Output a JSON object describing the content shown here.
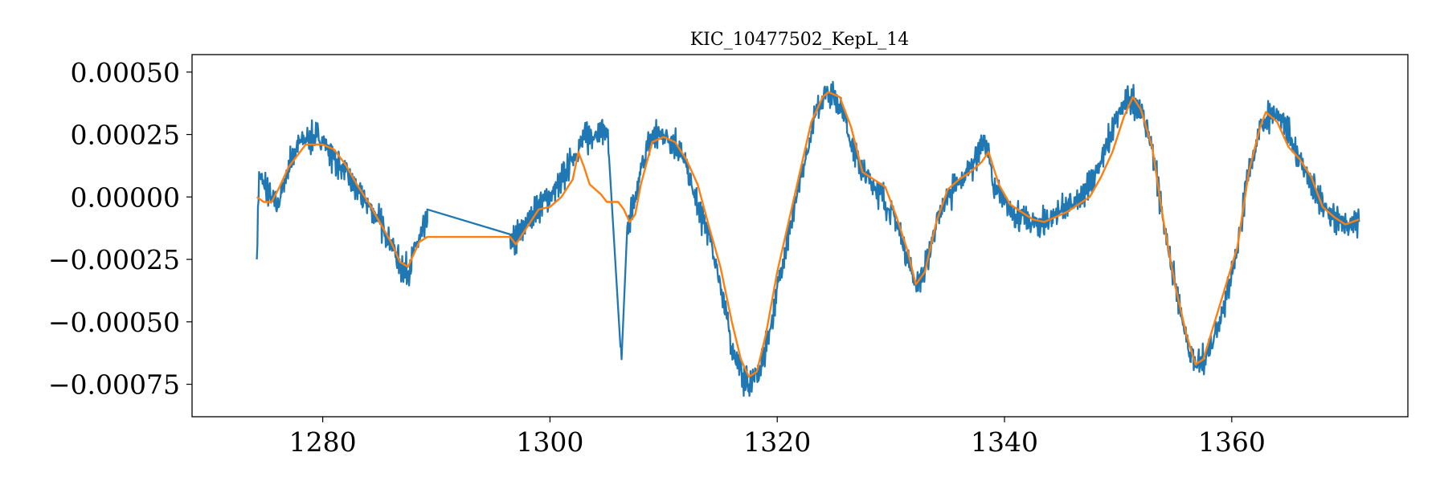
{
  "chart_data": {
    "type": "line",
    "title": "KIC_10477502_KepL_14",
    "xlabel": "",
    "ylabel": "",
    "xlim": [
      1268.5,
      1375.5
    ],
    "ylim": [
      -0.00088,
      0.00057
    ],
    "xticks": [
      1280,
      1300,
      1320,
      1340,
      1360
    ],
    "xtick_labels": [
      "1280",
      "1300",
      "1320",
      "1340",
      "1360"
    ],
    "yticks": [
      0.0005,
      0.00025,
      0.0,
      -0.00025,
      -0.0005,
      -0.00075
    ],
    "ytick_labels": [
      "0.00050",
      "0.00025",
      "0.00000",
      "−0.00025",
      "−0.00050",
      "−0.00075"
    ],
    "grid": false,
    "legend": "none",
    "series": [
      {
        "color": "#1f77b4",
        "noisy": true,
        "x": [
          1274.2,
          1274.4,
          1274.8,
          1275.5,
          1276.0,
          1276.5,
          1277.2,
          1278.0,
          1279.0,
          1280.0,
          1281.0,
          1282.0,
          1283.0,
          1284.0,
          1285.0,
          1286.0,
          1286.8,
          1287.5,
          1288.2,
          1289.2,
          1289.2,
          1296.5,
          1296.6,
          1297.2,
          1298.0,
          1299.0,
          1300.0,
          1301.0,
          1302.0,
          1303.0,
          1304.0,
          1305.0,
          1305.2,
          1306.2,
          1306.3,
          1306.8,
          1307.5,
          1308.2,
          1309.0,
          1310.0,
          1311.0,
          1312.0,
          1313.0,
          1314.0,
          1315.0,
          1316.0,
          1317.0,
          1317.5,
          1318.5,
          1319.5,
          1320.5,
          1321.5,
          1322.5,
          1323.5,
          1324.3,
          1325.0,
          1325.8,
          1326.5,
          1327.5,
          1328.5,
          1329.5,
          1330.5,
          1331.5,
          1332.2,
          1333.0,
          1334.0,
          1335.0,
          1336.0,
          1337.0,
          1337.3,
          1338.0,
          1338.5,
          1339.0,
          1340.0,
          1341.0,
          1342.0,
          1343.0,
          1344.0,
          1345.0,
          1346.0,
          1347.0,
          1348.0,
          1349.0,
          1350.0,
          1351.0,
          1352.0,
          1353.0,
          1354.0,
          1355.0,
          1356.0,
          1356.8,
          1357.5,
          1358.5,
          1359.5,
          1360.5,
          1361.5,
          1362.5,
          1363.5,
          1364.5,
          1365.5,
          1366.5,
          1367.5,
          1368.5,
          1369.5,
          1370.5,
          1371.2
        ],
        "y": [
          -0.00025,
          0.0001,
          5e-05,
          0.0,
          -4e-05,
          4e-05,
          0.00015,
          0.00022,
          0.00024,
          0.00023,
          0.00015,
          0.0001,
          2e-05,
          -3e-05,
          -0.0001,
          -0.00018,
          -0.00027,
          -0.0003,
          -0.0002,
          -0.0001,
          -5e-05,
          -0.00015,
          -0.0002,
          -0.00015,
          -0.0001,
          -3e-05,
          0.0,
          6e-05,
          0.00016,
          0.00023,
          0.00026,
          0.00027,
          0.00016,
          -0.0006,
          -0.00065,
          -0.00012,
          -2e-05,
          0.00015,
          0.00025,
          0.00025,
          0.00022,
          0.00012,
          -5e-05,
          -0.00015,
          -0.00035,
          -0.0006,
          -0.00072,
          -0.00075,
          -0.0007,
          -0.0005,
          -0.00025,
          -5e-05,
          0.00015,
          0.00035,
          0.00043,
          0.0004,
          0.00035,
          0.00022,
          0.0001,
          5e-05,
          -2e-05,
          -0.0001,
          -0.00025,
          -0.00035,
          -0.0003,
          -0.0001,
          0.0,
          5e-05,
          0.00012,
          0.00015,
          0.00022,
          0.0002,
          5e-05,
          -3e-05,
          -7e-05,
          -0.0001,
          -0.00011,
          -9e-05,
          -5e-05,
          -3e-05,
          0.0,
          0.0001,
          0.0002,
          0.00033,
          0.0004,
          0.00035,
          0.0002,
          -0.0001,
          -0.00035,
          -0.00058,
          -0.00068,
          -0.00066,
          -0.00055,
          -0.0004,
          -0.0002,
          0.0001,
          0.00028,
          0.00034,
          0.0003,
          0.0002,
          0.0001,
          0.0,
          -7e-05,
          -0.0001,
          -0.00012,
          -0.0001
        ]
      },
      {
        "color": "#ff7f0e",
        "noisy": false,
        "x": [
          1274.2,
          1274.8,
          1275.5,
          1276.2,
          1277.0,
          1278.0,
          1278.5,
          1280.0,
          1281.0,
          1282.0,
          1283.0,
          1284.0,
          1285.0,
          1286.0,
          1286.8,
          1287.5,
          1288.5,
          1289.2,
          1296.5,
          1297.0,
          1298.0,
          1299.0,
          1300.0,
          1301.0,
          1302.0,
          1302.5,
          1303.0,
          1303.5,
          1304.0,
          1304.5,
          1305.0,
          1306.0,
          1306.5,
          1307.0,
          1307.5,
          1308.0,
          1309.0,
          1310.0,
          1311.0,
          1312.0,
          1313.0,
          1314.0,
          1315.0,
          1316.0,
          1316.8,
          1317.5,
          1318.2,
          1319.0,
          1320.0,
          1321.0,
          1322.0,
          1323.0,
          1324.0,
          1324.5,
          1325.5,
          1326.5,
          1327.5,
          1328.5,
          1329.5,
          1330.5,
          1331.5,
          1332.2,
          1333.0,
          1334.0,
          1335.0,
          1336.0,
          1337.0,
          1338.0,
          1338.6,
          1339.5,
          1340.5,
          1341.5,
          1342.5,
          1343.5,
          1344.5,
          1345.5,
          1346.5,
          1347.5,
          1348.5,
          1349.5,
          1350.5,
          1351.3,
          1352.0,
          1353.0,
          1354.0,
          1355.0,
          1356.0,
          1356.8,
          1357.5,
          1358.5,
          1359.5,
          1360.5,
          1361.5,
          1362.5,
          1363.0,
          1364.0,
          1365.0,
          1366.0,
          1367.0,
          1368.0,
          1369.0,
          1370.0,
          1371.2
        ],
        "y": [
          0.0,
          -2e-05,
          -2e-05,
          4e-05,
          0.00012,
          0.00018,
          0.00021,
          0.00021,
          0.00019,
          0.00013,
          5e-05,
          -2e-05,
          -0.0001,
          -0.00018,
          -0.00026,
          -0.00028,
          -0.00018,
          -0.00016,
          -0.00016,
          -0.00019,
          -0.00012,
          -5e-05,
          -4e-05,
          0.0,
          7e-05,
          0.00018,
          0.00012,
          5e-05,
          3e-05,
          1e-05,
          -2e-05,
          -2e-05,
          -5e-05,
          -0.0001,
          -7e-05,
          5e-05,
          0.00022,
          0.00024,
          0.00022,
          0.00015,
          5e-05,
          -0.00012,
          -0.00028,
          -0.0005,
          -0.00065,
          -0.00072,
          -0.0007,
          -0.00055,
          -0.0003,
          -0.0001,
          0.0001,
          0.0003,
          0.0004,
          0.00042,
          0.0004,
          0.00028,
          0.0001,
          7e-05,
          4e-05,
          -8e-05,
          -0.00022,
          -0.00035,
          -0.0003,
          -0.0001,
          3e-05,
          7e-05,
          0.0001,
          0.00014,
          0.00018,
          5e-05,
          -3e-05,
          -6e-05,
          -9e-05,
          -0.0001,
          -8e-05,
          -6e-05,
          -3e-05,
          0.0,
          8e-05,
          0.00018,
          0.00032,
          0.0004,
          0.00035,
          0.0002,
          -0.0001,
          -0.00035,
          -0.00055,
          -0.00067,
          -0.00065,
          -0.0005,
          -0.00035,
          -0.0002,
          0.0001,
          0.00028,
          0.00034,
          0.0003,
          0.0002,
          0.00015,
          8e-05,
          -4e-05,
          -8e-05,
          -0.00011,
          -9e-05
        ]
      }
    ]
  }
}
